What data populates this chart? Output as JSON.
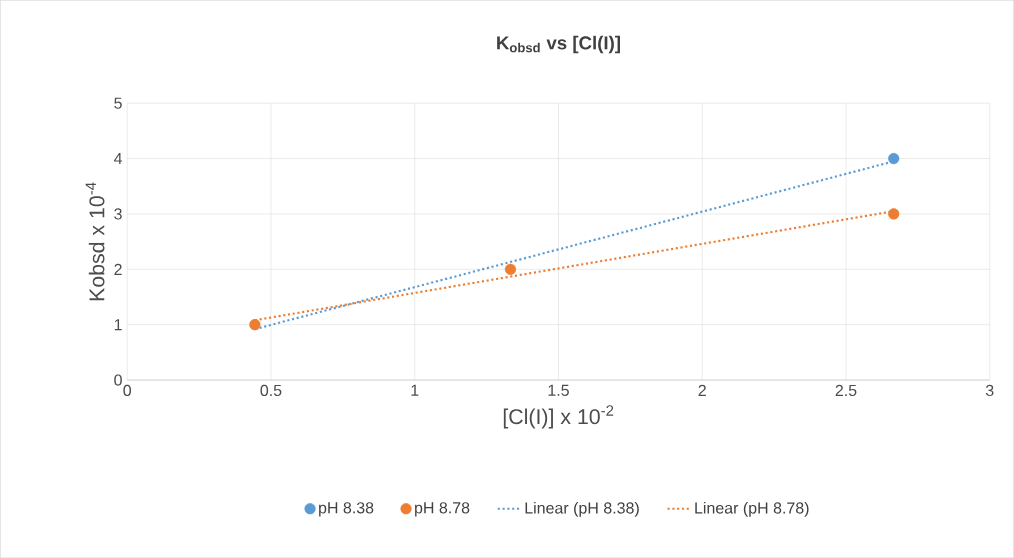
{
  "chart_data": {
    "type": "scatter",
    "title": "K$_{obsd}$ vs [Cl(I)]",
    "xlabel": "[Cl(I)] x 10$^{-2}$",
    "ylabel": "Kobsd x 10$^{-4}$",
    "xlim": [
      0,
      3
    ],
    "ylim": [
      0,
      5
    ],
    "xticks": [
      0,
      0.5,
      1,
      1.5,
      2,
      2.5,
      3
    ],
    "yticks": [
      0,
      1,
      2,
      3,
      4,
      5
    ],
    "grid": true,
    "legend": "bottom",
    "series": [
      {
        "name": "pH 8.38",
        "color": "#5b9bd5",
        "marker": "circle",
        "x": [
          2.666
        ],
        "values": [
          4
        ]
      },
      {
        "name": "pH 8.78",
        "color": "#ed7d31",
        "marker": "circle",
        "x": [
          0.444,
          1.333,
          2.666
        ],
        "values": [
          1,
          2,
          3
        ]
      },
      {
        "name": "Linear (pH 8.38)",
        "color": "#5b9bd5",
        "type": "line",
        "line_style": "dotted",
        "marker": "none",
        "x": [
          0.444,
          2.666
        ],
        "values": [
          0.92,
          3.95
        ]
      },
      {
        "name": "Linear (pH 8.78)",
        "color": "#ed7d31",
        "type": "line",
        "line_style": "dotted",
        "marker": "none",
        "x": [
          0.444,
          2.666
        ],
        "values": [
          1.08,
          3.05
        ]
      }
    ]
  }
}
